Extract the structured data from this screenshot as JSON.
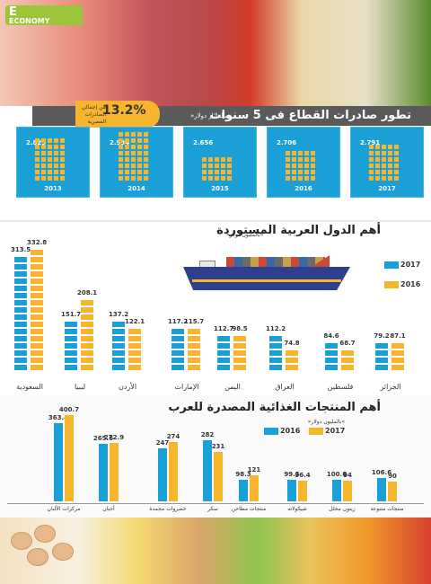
{
  "logo": {
    "line1": "E",
    "line2": "ECONOMY"
  },
  "header": {
    "title": "تطور صادرات القطاع فى 5 سنوات",
    "unit": "»بالمليار دولار«",
    "badge_value": "13.2%",
    "badge_text": "من إجمالي الصادرات المصرية"
  },
  "colors": {
    "blue": "#1a9fd6",
    "yellow": "#f6b52d",
    "dark_blue": "#2d3f8e",
    "gray": "#5a5a5a"
  },
  "section2": {
    "title": "أهم الدول العربية المستوردة",
    "unit": "»بالمليون دولار«",
    "legend": [
      "2017",
      "2016"
    ]
  },
  "section3": {
    "title": "أهم المنتجات الغذائية المصدرة للعرب",
    "unit": "»بالمليون دولار«",
    "legend": [
      "2016",
      "2017"
    ]
  },
  "chart_data": [
    {
      "type": "bar",
      "title": "تطور صادرات القطاع فى 5 سنوات",
      "categories": [
        "2013",
        "2014",
        "2015",
        "2016",
        "2017"
      ],
      "values": [
        2.829,
        2.934,
        2.656,
        2.706,
        2.791
      ],
      "value_labels": [
        "2.829",
        "2.934",
        "2.656",
        "2.706",
        "2.791"
      ]
    },
    {
      "type": "bar",
      "title": "أهم الدول العربية المستوردة",
      "categories": [
        "السعودية",
        "ليبيا",
        "الأردن",
        "الإمارات",
        "اليمن",
        "العراق",
        "فلسطين",
        "الجزائر"
      ],
      "series": [
        {
          "name": "2017",
          "values": [
            313.5,
            151.7,
            137.2,
            117.2,
            112.7,
            112.2,
            84.6,
            79.2
          ]
        },
        {
          "name": "2016",
          "values": [
            332.8,
            208.1,
            122.1,
            115.7,
            98.5,
            74.8,
            68.7,
            87.1
          ]
        }
      ],
      "value_labels_2017": [
        "313.5",
        "151.7",
        "137.2",
        "117.2",
        "112.7",
        "112.2",
        "84.6",
        "79.2"
      ],
      "value_labels_2016": [
        "332.8",
        "208.1",
        "122.1",
        "115.7",
        "98.5",
        "74.8",
        "68.7",
        "87.1"
      ]
    },
    {
      "type": "bar",
      "title": "أهم المنتجات الغذائية المصدرة للعرب",
      "categories": [
        "مركزات الألبان",
        "أجبان",
        "خضروات مجمدة",
        "سكر",
        "منتجات مطاحن",
        "شيكولاته",
        "زيتون مخلل",
        "منتجات متنوعة"
      ],
      "series": [
        {
          "name": "2016",
          "values": [
            363.4,
            265.6,
            247,
            282,
            98.3,
            99.5,
            100.6,
            106.6
          ]
        },
        {
          "name": "2017",
          "values": [
            400.7,
            272.9,
            274,
            231,
            121,
            96.4,
            94,
            90
          ]
        }
      ],
      "value_labels_2016": [
        "363.4",
        "265.6",
        "247",
        "282",
        "98.3",
        "99.5",
        "100.6",
        "106.6"
      ],
      "value_labels_2017": [
        "400.7",
        "272.9",
        "274",
        "231",
        "121",
        "96.4",
        "94",
        "90"
      ]
    }
  ]
}
